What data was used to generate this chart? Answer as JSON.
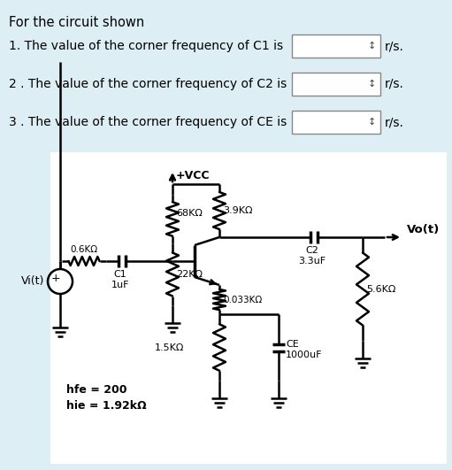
{
  "background_color": "#ddeef5",
  "circuit_bg": "#ffffff",
  "title_text": "For the circuit shown",
  "questions": [
    "1. The value of the corner frequency of C1 is",
    "2 . The value of the corner frequency of C2 is",
    "3 . The value of the corner frequency of CE is"
  ],
  "unit_label": "r/s.",
  "R_top": "3.9KΩ",
  "R_left": "0.6KΩ",
  "R_68k": "68KΩ",
  "R_22k": "22KΩ",
  "R_033": "0.033KΩ",
  "R_56k": "5.6KΩ",
  "R_15k": "1.5KΩ",
  "C1_label": "C1\n1uF",
  "C2_label": "C2\n3.3uF",
  "CE_label": "CE\n1000uF",
  "hfe_label": "hfe = 200",
  "hie_label": "hie = 1.92kΩ",
  "Vcc_label": "+VCC",
  "Vi_label": "Vi(t)",
  "Vo_label": "Vo(t)"
}
